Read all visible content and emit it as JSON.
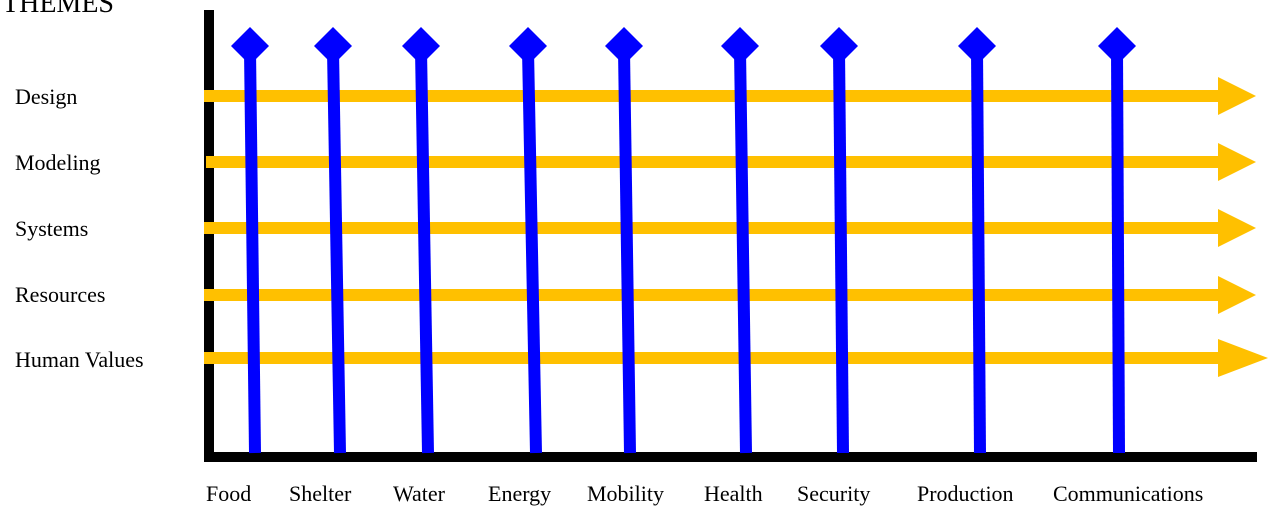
{
  "header": {
    "title": "THEMES"
  },
  "themes": [
    "Design",
    "Modeling",
    "Systems",
    "Resources",
    "Human Values"
  ],
  "domains": [
    "Food",
    "Shelter",
    "Water",
    "Energy",
    "Mobility",
    "Health",
    "Security",
    "Production",
    "Communications"
  ],
  "colors": {
    "theme_arrow": "#FFC000",
    "domain_line": "#0000FF",
    "axis": "#000000",
    "text": "#000000"
  }
}
